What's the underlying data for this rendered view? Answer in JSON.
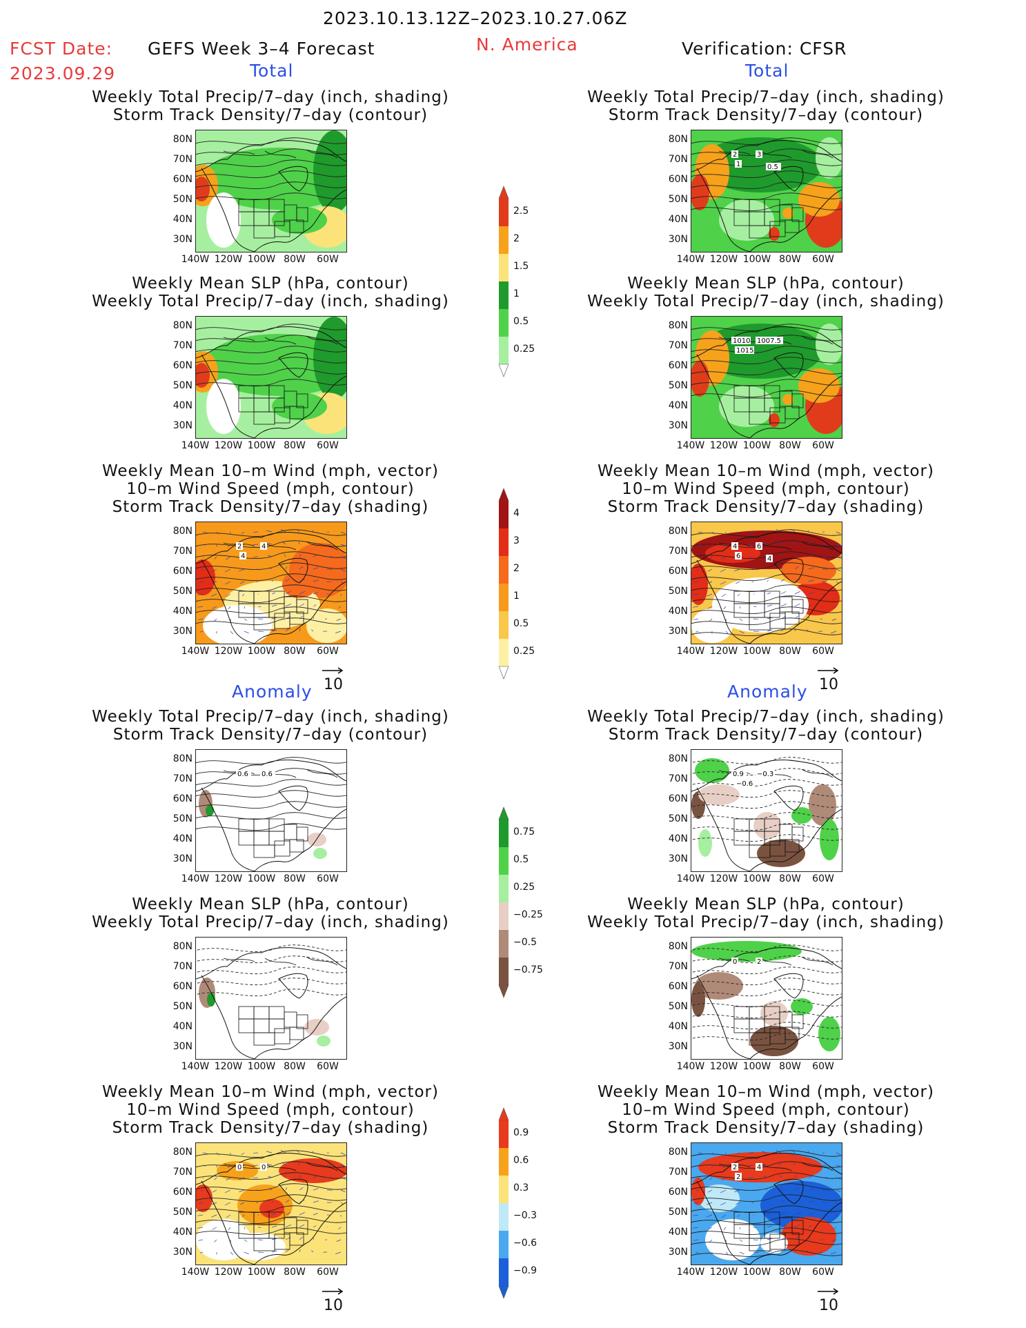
{
  "header": {
    "date_range": "2023.10.13.12Z–2023.10.27.06Z",
    "fcst_label": "FCST Date:",
    "fcst_date": "2023.09.29",
    "model": "GEFS Week 3–4 Forecast",
    "region": "N. America",
    "verification": "Verification: CFSR"
  },
  "sections": {
    "total_left": "Total",
    "total_right": "Total",
    "anomaly_left": "Anomaly",
    "anomaly_right": "Anomaly"
  },
  "titles": {
    "precip_track": [
      "Weekly Total Precip/7–day (inch, shading)",
      "Storm Track Density/7–day (contour)"
    ],
    "slp_precip": [
      "Weekly Mean SLP (hPa, contour)",
      "Weekly Total Precip/7–day (inch, shading)"
    ],
    "wind_track": [
      "Weekly Mean 10–m Wind (mph, vector)",
      "10–m Wind Speed (mph, contour)",
      "Storm Track Density/7–day (shading)"
    ]
  },
  "axes": {
    "lat_ticks": [
      "80N",
      "70N",
      "60N",
      "50N",
      "40N",
      "30N"
    ],
    "lon_ticks": [
      "140W",
      "120W",
      "100W",
      "80W",
      "60W"
    ]
  },
  "vector_ref": "10",
  "colorbars": {
    "precip_total": {
      "labels": [
        "2.5",
        "2",
        "1.5",
        "1",
        "0.5",
        "0.25"
      ],
      "colors": [
        "#e03c1c",
        "#f7a21b",
        "#fbe37a",
        "#1f9a2c",
        "#4fd14a",
        "#a6efa0"
      ]
    },
    "track_total": {
      "labels": [
        "4",
        "3",
        "2",
        "1",
        "0.5",
        "0.25"
      ],
      "colors": [
        "#a01414",
        "#e32d16",
        "#f56a1c",
        "#f79a1b",
        "#f9c74a",
        "#fdf0a4"
      ]
    },
    "precip_anom": {
      "labels": [
        "0.75",
        "0.5",
        "0.25",
        "−0.25",
        "−0.5",
        "−0.75"
      ],
      "colors": [
        "#1f9a2c",
        "#4fd14a",
        "#a6efa0",
        "#e8cfc6",
        "#b08a78",
        "#7a5340"
      ]
    },
    "track_anom": {
      "labels": [
        "0.9",
        "0.6",
        "0.3",
        "−0.3",
        "−0.6",
        "−0.9"
      ],
      "colors": [
        "#e83a1c",
        "#f7a21b",
        "#fbe37a",
        "#bfe9f7",
        "#4aa8ee",
        "#1b60d8"
      ]
    }
  },
  "contour_labels": {
    "r1": [
      "2",
      "3",
      "1",
      "0.5"
    ],
    "r2": [
      "1010",
      "1007.5",
      "1015"
    ],
    "l3": [
      "2",
      "4",
      "4"
    ],
    "r3": [
      "4",
      "6",
      "6",
      "4"
    ],
    "l4": [
      "0.6",
      "0.6"
    ],
    "r4": [
      "0.9",
      "−0.3",
      "−0.6"
    ],
    "r5": [
      "0",
      "2"
    ],
    "l6": [
      "0",
      "0"
    ],
    "r6": [
      "2",
      "4",
      "2"
    ]
  }
}
